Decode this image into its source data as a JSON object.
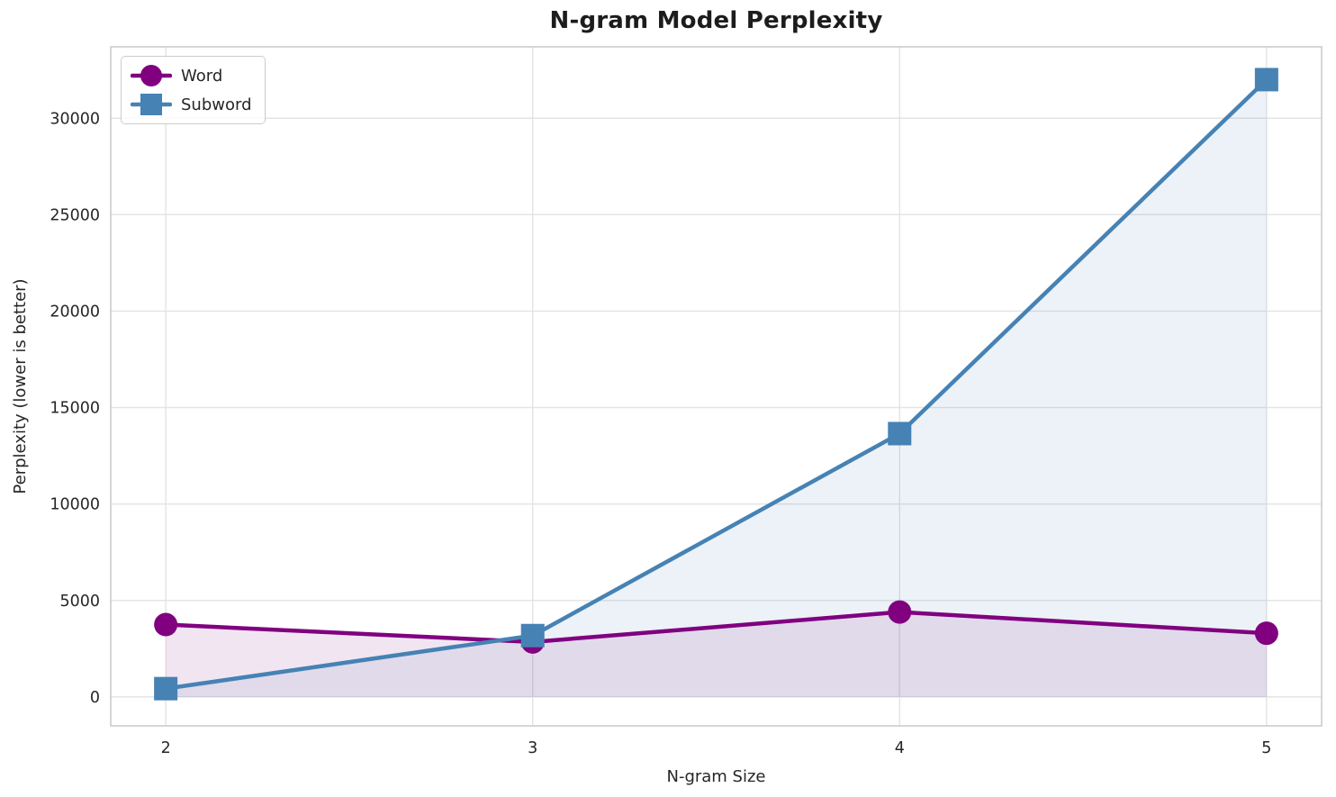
{
  "chart_data": {
    "type": "line",
    "title": "N-gram Model Perplexity",
    "xlabel": "N-gram Size",
    "ylabel": "Perplexity (lower is better)",
    "x": [
      2,
      3,
      4,
      5
    ],
    "series": [
      {
        "name": "Word",
        "marker": "circle",
        "color": "#800080",
        "values": [
          3750,
          2850,
          4400,
          3300
        ]
      },
      {
        "name": "Subword",
        "marker": "square",
        "color": "#4682b4",
        "values": [
          430,
          3180,
          13650,
          32000
        ]
      }
    ],
    "x_ticks": [
      2,
      3,
      4,
      5
    ],
    "y_ticks": [
      0,
      5000,
      10000,
      15000,
      20000,
      25000,
      30000
    ],
    "xlim": [
      1.85,
      5.15
    ],
    "ylim": [
      -1500,
      33700
    ],
    "grid": true,
    "legend_position": "upper-left",
    "fill_baseline": 0,
    "fill_alpha": 0.1,
    "colors": {
      "grid": "#e3e3e3",
      "spine": "#cccccc",
      "tick_text": "#262626",
      "title_text": "#1c1c1c",
      "background": "#ffffff"
    }
  }
}
